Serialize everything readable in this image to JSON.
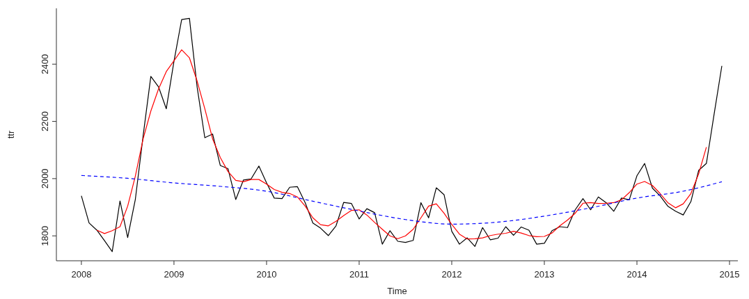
{
  "chart_data": {
    "type": "line",
    "xlabel": "Time",
    "ylabel": "ttr",
    "xlim": [
      2007.73,
      2015.09
    ],
    "ylim": [
      1713,
      2595
    ],
    "xticks": [
      2008,
      2009,
      2010,
      2011,
      2012,
      2013,
      2014,
      2015
    ],
    "yticks": [
      1800,
      2000,
      2200,
      2400
    ],
    "grid": false,
    "x": [
      2008,
      2008.083,
      2008.167,
      2008.25,
      2008.333,
      2008.417,
      2008.5,
      2008.583,
      2008.667,
      2008.75,
      2008.833,
      2008.917,
      2009,
      2009.083,
      2009.167,
      2009.25,
      2009.333,
      2009.417,
      2009.5,
      2009.583,
      2009.667,
      2009.75,
      2009.833,
      2009.917,
      2010,
      2010.083,
      2010.167,
      2010.25,
      2010.333,
      2010.417,
      2010.5,
      2010.583,
      2010.667,
      2010.75,
      2010.833,
      2010.917,
      2011,
      2011.083,
      2011.167,
      2011.25,
      2011.333,
      2011.417,
      2011.5,
      2011.583,
      2011.667,
      2011.75,
      2011.833,
      2011.917,
      2012,
      2012.083,
      2012.167,
      2012.25,
      2012.333,
      2012.417,
      2012.5,
      2012.583,
      2012.667,
      2012.75,
      2012.833,
      2012.917,
      2013,
      2013.083,
      2013.167,
      2013.25,
      2013.333,
      2013.417,
      2013.5,
      2013.583,
      2013.667,
      2013.75,
      2013.833,
      2013.917,
      2014,
      2014.083,
      2014.167,
      2014.25,
      2014.333,
      2014.417,
      2014.5,
      2014.583,
      2014.667,
      2014.75,
      2014.833,
      2014.917
    ],
    "series": [
      {
        "color": "#000000",
        "line_style": "solid",
        "values": [
          1940,
          1845,
          1820,
          1783,
          1745,
          1922,
          1794,
          1928,
          2150,
          2357,
          2321,
          2244,
          2410,
          2556,
          2560,
          2320,
          2143,
          2156,
          2046,
          2035,
          1927,
          1995,
          1999,
          2044,
          1985,
          1932,
          1930,
          1970,
          1972,
          1916,
          1845,
          1827,
          1801,
          1835,
          1917,
          1913,
          1859,
          1895,
          1881,
          1771,
          1818,
          1781,
          1777,
          1784,
          1916,
          1863,
          1968,
          1944,
          1816,
          1771,
          1793,
          1763,
          1829,
          1786,
          1792,
          1832,
          1802,
          1831,
          1820,
          1771,
          1774,
          1818,
          1832,
          1829,
          1891,
          1930,
          1891,
          1936,
          1916,
          1886,
          1932,
          1926,
          2010,
          2053,
          1967,
          1940,
          1904,
          1886,
          1873,
          1920,
          2029,
          2053,
          2224,
          2394
        ]
      },
      {
        "color": "#ff0000",
        "line_style": "solid",
        "values": [
          null,
          null,
          1820,
          1808,
          1818,
          1832,
          1904,
          2009,
          2139,
          2236,
          2313,
          2374,
          2412,
          2450,
          2422,
          2341,
          2244,
          2139,
          2074,
          2025,
          1994,
          1989,
          1997,
          1997,
          1981,
          1962,
          1952,
          1948,
          1936,
          1904,
          1863,
          1839,
          1835,
          1851,
          1871,
          1889,
          1891,
          1873,
          1847,
          1823,
          1800,
          1790,
          1800,
          1823,
          1863,
          1904,
          1912,
          1879,
          1840,
          1806,
          1789,
          1790,
          1793,
          1801,
          1806,
          1809,
          1816,
          1810,
          1801,
          1797,
          1798,
          1810,
          1835,
          1855,
          1879,
          1914,
          1916,
          1913,
          1914,
          1916,
          1926,
          1951,
          1981,
          1990,
          1976,
          1948,
          1916,
          1898,
          1912,
          1948,
          2017,
          2110,
          null,
          null
        ]
      },
      {
        "color": "#0000ff",
        "line_style": "dashed",
        "x": [
          2008,
          2008.5,
          2009,
          2009.5,
          2010,
          2010.5,
          2011,
          2011.5,
          2012,
          2012.5,
          2013,
          2013.5,
          2014,
          2014.5,
          2014.917
        ],
        "values": [
          2011,
          2001,
          1985,
          1973,
          1956,
          1921,
          1887,
          1857,
          1841,
          1848,
          1869,
          1898,
          1932,
          1956,
          1989
        ]
      }
    ]
  }
}
